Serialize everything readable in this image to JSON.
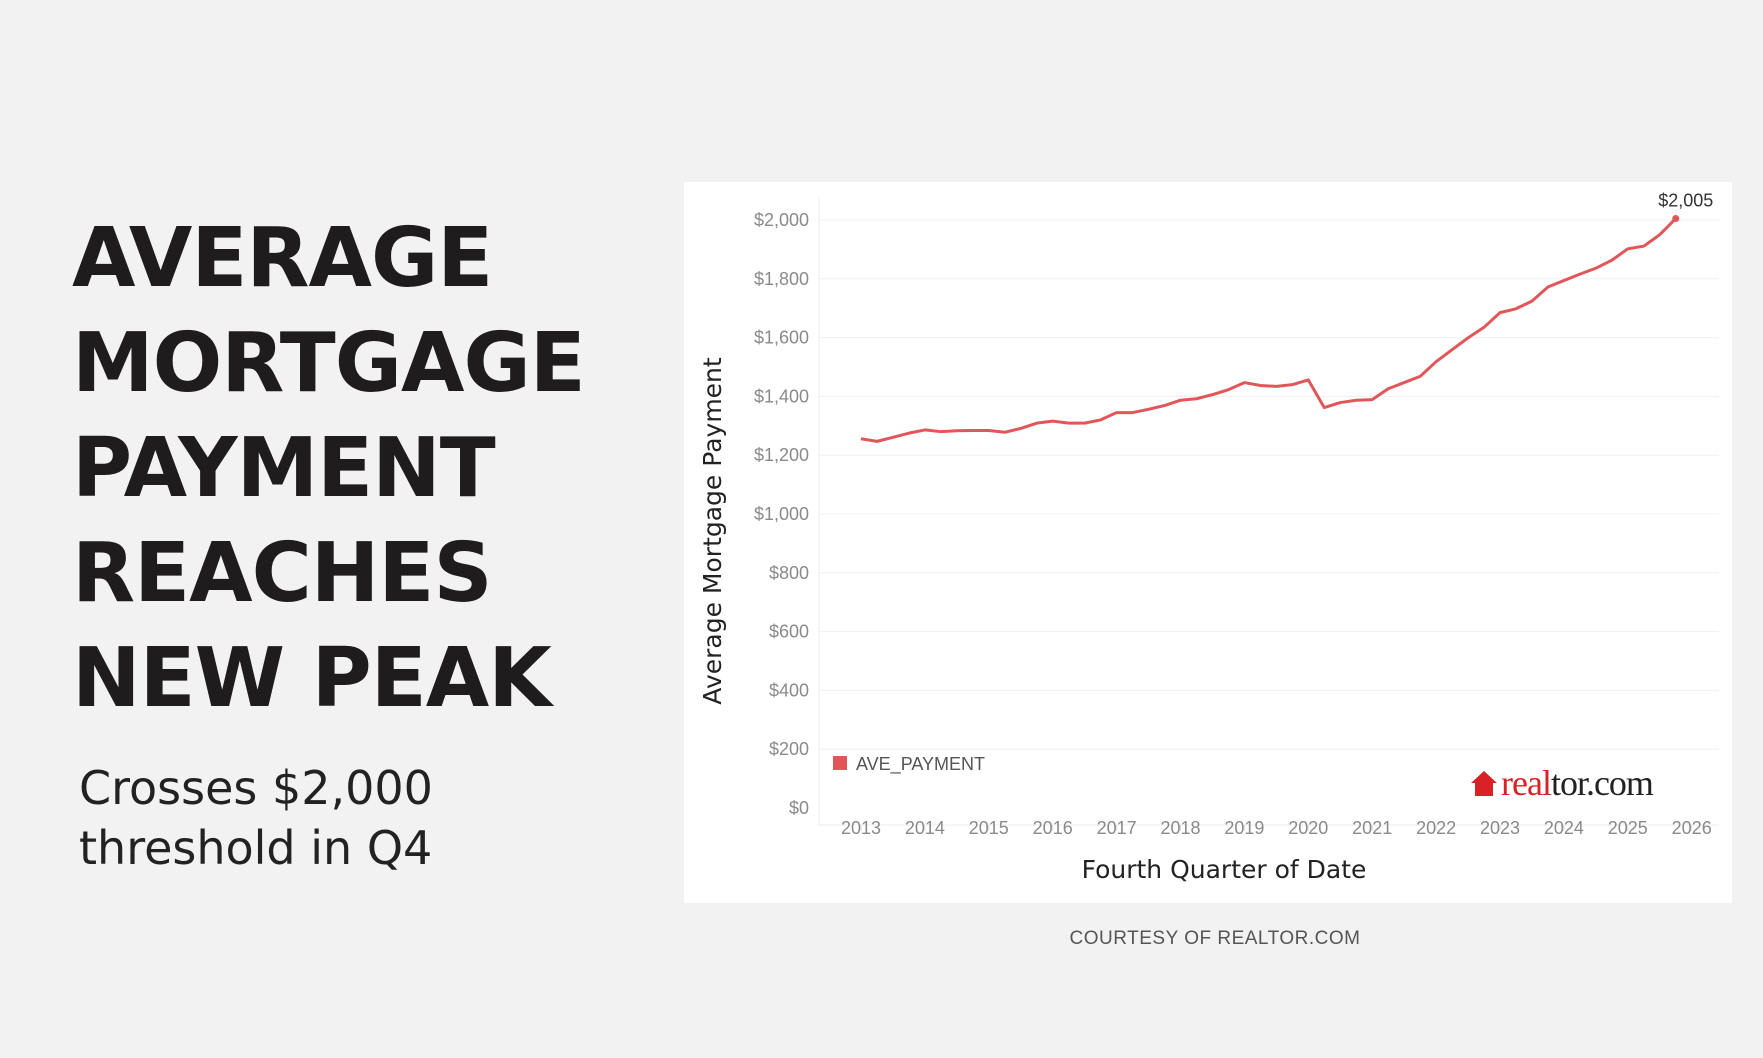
{
  "headline": [
    "AVERAGE",
    "MORTGAGE",
    "PAYMENT",
    "REACHES",
    "NEW PEAK"
  ],
  "subtitle": [
    "Crosses $2,000",
    "threshold in Q4"
  ],
  "courtesy": "COURTESY OF REALTOR.COM",
  "logo_text": "realtor.com",
  "chart_data": {
    "type": "line",
    "xlabel": "Fourth Quarter of Date",
    "ylabel": "Average Mortgage Payment",
    "ylim": [
      0,
      2000
    ],
    "yticks": [
      "$0",
      "$200",
      "$400",
      "$600",
      "$800",
      "$1,000",
      "$1,200",
      "$1,400",
      "$1,600",
      "$1,800",
      "$2,000"
    ],
    "ytick_values": [
      0,
      200,
      400,
      600,
      800,
      1000,
      1200,
      1400,
      1600,
      1800,
      2000
    ],
    "xticks": [
      "2013",
      "2014",
      "2015",
      "2016",
      "2017",
      "2018",
      "2019",
      "2020",
      "2021",
      "2022",
      "2023",
      "2024",
      "2025",
      "2026"
    ],
    "grid": true,
    "legend": {
      "position": "bottom-left",
      "entries": [
        "AVE_PAYMENT"
      ]
    },
    "series": [
      {
        "name": "AVE_PAYMENT",
        "color": "#e15759",
        "x": [
          "2013 Q1",
          "2013 Q2",
          "2013 Q3",
          "2013 Q4",
          "2014 Q1",
          "2014 Q2",
          "2014 Q3",
          "2014 Q4",
          "2015 Q1",
          "2015 Q2",
          "2015 Q3",
          "2015 Q4",
          "2016 Q1",
          "2016 Q2",
          "2016 Q3",
          "2016 Q4",
          "2017 Q1",
          "2017 Q2",
          "2017 Q3",
          "2017 Q4",
          "2018 Q1",
          "2018 Q2",
          "2018 Q3",
          "2018 Q4",
          "2019 Q1",
          "2019 Q2",
          "2019 Q3",
          "2019 Q4",
          "2020 Q1",
          "2020 Q2",
          "2020 Q3",
          "2020 Q4",
          "2021 Q1",
          "2021 Q2",
          "2021 Q3",
          "2021 Q4",
          "2022 Q1",
          "2022 Q2",
          "2022 Q3",
          "2022 Q4",
          "2023 Q1",
          "2023 Q2",
          "2023 Q3",
          "2023 Q4",
          "2024 Q1",
          "2024 Q2",
          "2024 Q3",
          "2024 Q4",
          "2025 Q1",
          "2025 Q2",
          "2025 Q3",
          "2025 Q4"
        ],
        "values": [
          1256,
          1247,
          1261,
          1275,
          1286,
          1280,
          1283,
          1284,
          1284,
          1278,
          1291,
          1309,
          1316,
          1309,
          1309,
          1320,
          1345,
          1345,
          1356,
          1369,
          1387,
          1392,
          1406,
          1423,
          1447,
          1437,
          1434,
          1440,
          1456,
          1362,
          1379,
          1387,
          1389,
          1426,
          1447,
          1468,
          1518,
          1559,
          1599,
          1635,
          1685,
          1698,
          1724,
          1772,
          1794,
          1816,
          1836,
          1863,
          1902,
          1911,
          1950,
          2005
        ]
      }
    ],
    "annotations": [
      {
        "x": "2025 Q4",
        "text": "$2,005"
      }
    ]
  }
}
